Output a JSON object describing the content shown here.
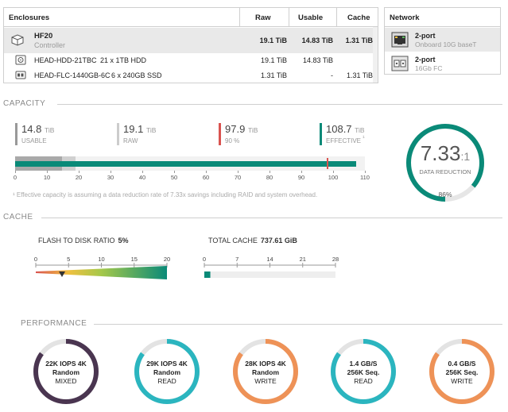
{
  "enclosures": {
    "headers": {
      "name": "Enclosures",
      "raw": "Raw",
      "usable": "Usable",
      "cache": "Cache"
    },
    "rows": [
      {
        "name": "HF20",
        "sub": "Controller",
        "desc": "",
        "raw": "19.1 TiB",
        "usable": "14.83 TiB",
        "cache": "1.31 TiB",
        "icon": "chassis-icon"
      },
      {
        "name": "HEAD-HDD-21TBC",
        "sub": "",
        "desc": "21 x 1TB HDD",
        "raw": "19.1 TiB",
        "usable": "14.83 TiB",
        "cache": "",
        "icon": "hdd-icon"
      },
      {
        "name": "HEAD-FLC-1440GB-6C",
        "sub": "",
        "desc": "6 x 240GB SSD",
        "raw": "1.31 TiB",
        "usable": "-",
        "cache": "1.31 TiB",
        "icon": "ssd-icon"
      }
    ]
  },
  "network": {
    "header": "Network",
    "rows": [
      {
        "name": "2-port",
        "sub": "Onboard 10G baseT",
        "icon": "ethernet-port-icon"
      },
      {
        "name": "2-port",
        "sub": "16Gb FC",
        "icon": "fc-port-icon"
      }
    ]
  },
  "capacity": {
    "section": "CAPACITY",
    "stats": [
      {
        "value": "14.8",
        "unit": "TiB",
        "label": "USABLE",
        "color": "#999999"
      },
      {
        "value": "19.1",
        "unit": "TiB",
        "label": "RAW",
        "color": "#cccccc"
      },
      {
        "value": "97.9",
        "unit": "TiB",
        "label": "90 %",
        "color": "#d9534f"
      },
      {
        "value": "108.7",
        "unit": "TiB",
        "label": "EFFECTIVE",
        "color": "#0a8a78"
      }
    ],
    "stat_marker": "¹",
    "bar": {
      "usable": 14.8,
      "raw": 19.1,
      "threshold": 97.9,
      "effective": 108.7,
      "max": 110
    },
    "ticks": [
      "0",
      "10",
      "20",
      "30",
      "40",
      "50",
      "60",
      "70",
      "80",
      "90",
      "100",
      "110"
    ],
    "footnote": "¹ Effective capacity is assuming a data reduction rate of 7.33x savings including RAID and system overhead.",
    "reduction": {
      "value": "7.33",
      "ratio": ":1",
      "label": "DATA REDUCTION",
      "percent": "86%",
      "fraction": 0.86
    }
  },
  "cache": {
    "section": "CACHE",
    "flash_ratio_label": "FLASH TO DISK RATIO",
    "flash_ratio_value": "5%",
    "flash_ticks": [
      "0",
      "5",
      "10",
      "15",
      "20"
    ],
    "flash_marker": 4,
    "total_label": "TOTAL CACHE",
    "total_value": "737.61 GiB",
    "total_ticks": [
      "0",
      "7",
      "14",
      "21",
      "28"
    ],
    "total_fill": 0.72
  },
  "performance": {
    "section": "PERFORMANCE",
    "items": [
      {
        "l1": "22K IOPS 4K",
        "l2": "Random",
        "l3": "MIXED",
        "color": "#4a3550",
        "fraction": 0.85
      },
      {
        "l1": "29K IOPS 4K",
        "l2": "Random",
        "l3": "READ",
        "color": "#2bb5bf",
        "fraction": 0.85
      },
      {
        "l1": "28K IOPS 4K",
        "l2": "Random",
        "l3": "WRITE",
        "color": "#ee9257",
        "fraction": 0.85
      },
      {
        "l1": "1.4 GB/S",
        "l2": "256K Seq.",
        "l3": "READ",
        "color": "#2bb5bf",
        "fraction": 0.85
      },
      {
        "l1": "0.4 GB/S",
        "l2": "256K Seq.",
        "l3": "WRITE",
        "color": "#ee9257",
        "fraction": 0.85
      }
    ]
  }
}
